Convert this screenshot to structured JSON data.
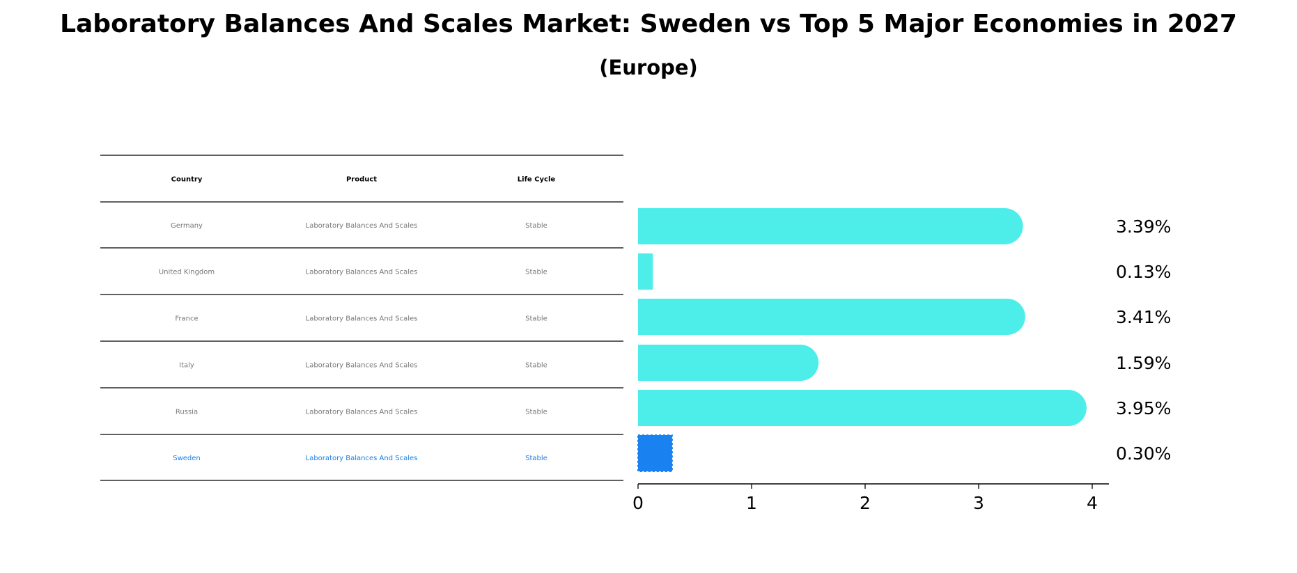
{
  "title": "Laboratory Balances And Scales Market: Sweden vs Top 5 Major Economies in 2027",
  "subtitle": "(Europe)",
  "table": {
    "headers": [
      "Country",
      "Product",
      "Life Cycle"
    ],
    "rows": [
      [
        "Germany",
        "Laboratory Balances And Scales",
        "Stable"
      ],
      [
        "United Kingdom",
        "Laboratory Balances And Scales",
        "Stable"
      ],
      [
        "France",
        "Laboratory Balances And Scales",
        "Stable"
      ],
      [
        "Italy",
        "Laboratory Balances And Scales",
        "Stable"
      ],
      [
        "Russia",
        "Laboratory Balances And Scales",
        "Stable"
      ],
      [
        "Sweden",
        "Laboratory Balances And Scales",
        "Stable"
      ]
    ],
    "highlight_row": 5
  },
  "chart_data": {
    "type": "bar",
    "orientation": "horizontal",
    "categories": [
      "Germany",
      "United Kingdom",
      "France",
      "Italy",
      "Russia",
      "Sweden"
    ],
    "values": [
      3.39,
      0.13,
      3.41,
      1.59,
      3.95,
      0.3
    ],
    "data_labels": [
      "3.39%",
      "0.13%",
      "3.41%",
      "1.59%",
      "3.95%",
      "0.30%"
    ],
    "xticks": [
      "0",
      "1",
      "2",
      "3",
      "4"
    ],
    "xlim": [
      0,
      4.15
    ],
    "highlight_index": 5,
    "colors": {
      "bar": "#4deeea",
      "highlight": "#1a82f0",
      "text_muted": "#777777",
      "text_highlight": "#1a7fe6"
    },
    "grid": false
  }
}
